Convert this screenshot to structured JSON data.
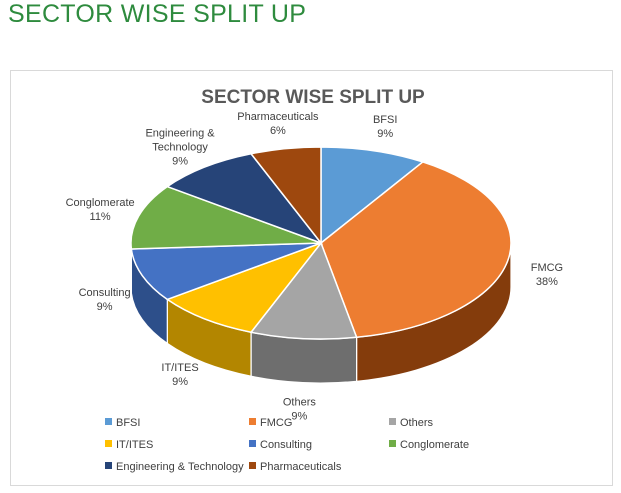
{
  "heading": "SECTOR WISE SPLIT UP",
  "chart_data": {
    "type": "pie",
    "title": "SECTOR WISE SPLIT UP",
    "style": "3d",
    "legend_position": "bottom",
    "categories": [
      "BFSI",
      "FMCG",
      "Others",
      "IT/ITES",
      "Consulting",
      "Conglomerate",
      "Engineering & Technology",
      "Pharmaceuticals"
    ],
    "values": [
      9,
      38,
      9,
      9,
      9,
      11,
      9,
      6
    ],
    "data_labels": [
      {
        "name": "BFSI",
        "percent": "9%"
      },
      {
        "name": "FMCG",
        "percent": "38%"
      },
      {
        "name": "Others",
        "percent": "9%"
      },
      {
        "name": "IT/ITES",
        "percent": "9%"
      },
      {
        "name": "Consulting",
        "percent": "9%"
      },
      {
        "name": "Conglomerate",
        "percent": "11%"
      },
      {
        "name": "Engineering & Technology",
        "percent": "9%",
        "lines": [
          "Engineering &",
          "Technology"
        ]
      },
      {
        "name": "Pharmaceuticals",
        "percent": "6%"
      }
    ],
    "colors": [
      "#5b9bd5",
      "#ed7d31",
      "#a5a5a5",
      "#ffc000",
      "#4472c4",
      "#70ad47",
      "#264478",
      "#9e480e"
    ],
    "side_colors": [
      "#3a6f9f",
      "#843c0c",
      "#6e6e6e",
      "#b38600",
      "#2d4f8a",
      "#4a7a2d",
      "#172b4d",
      "#6a2f08"
    ]
  }
}
